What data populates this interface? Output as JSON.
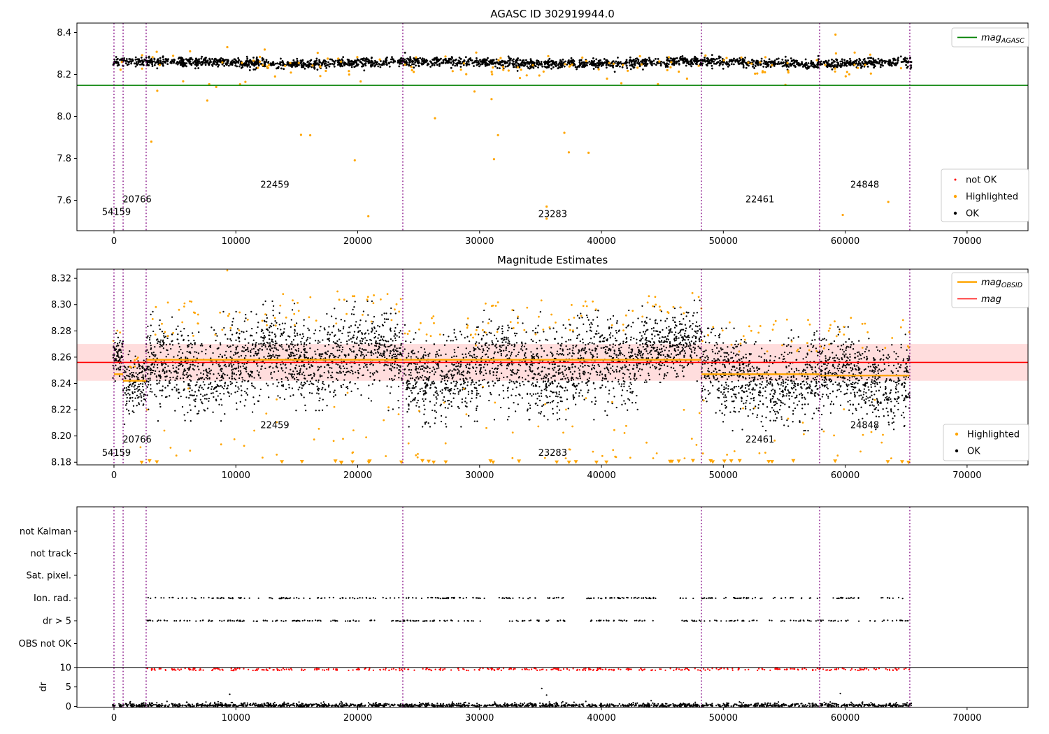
{
  "figure": {
    "background": "#ffffff"
  },
  "colors": {
    "ok": "#000000",
    "highlighted": "#ffa500",
    "not_ok": "#ff0000",
    "mag_agasc": "#008000",
    "mag_obsid": "#ffa500",
    "mag": "#ff0000",
    "mag_band": "#ffdddd",
    "divider": "#800080",
    "axis": "#000000",
    "legend_border": "#cccccc"
  },
  "chart_data": [
    {
      "id": "agasc",
      "type": "scatter",
      "title": "AGASC ID 302919944.0",
      "xlim": [
        -3040,
        75000
      ],
      "ylim": [
        7.455,
        8.445
      ],
      "xticks": [
        "0",
        "10000",
        "20000",
        "30000",
        "40000",
        "50000",
        "60000",
        "70000"
      ],
      "yticks": [
        "7.6",
        "7.8",
        "8.0",
        "8.2",
        "8.4"
      ],
      "obsid_dividers": [
        0,
        750,
        2640,
        23700,
        48200,
        57900,
        65300
      ],
      "mag_agasc_value": 8.148,
      "legend_line": {
        "main": "mag",
        "sub": "AGASC"
      },
      "legend_markers": [
        {
          "label": "not OK",
          "color_key": "not_ok"
        },
        {
          "label": "Highlighted",
          "color_key": "highlighted"
        },
        {
          "label": "OK",
          "color_key": "ok"
        }
      ],
      "obsid_labels": [
        {
          "text": "54159",
          "x": 200,
          "y": 7.53
        },
        {
          "text": "20766",
          "x": 1900,
          "y": 7.59
        },
        {
          "text": "22459",
          "x": 13200,
          "y": 7.66
        },
        {
          "text": "23283",
          "x": 36000,
          "y": 7.52
        },
        {
          "text": "22461",
          "x": 53000,
          "y": 7.59
        },
        {
          "text": "24848",
          "x": 61600,
          "y": 7.66
        }
      ],
      "ok_points": {
        "seed": 11,
        "n": 2300,
        "x_min": -150,
        "x_max": 65450,
        "mean": 8.256,
        "noise": 0.011,
        "wiggle_amp": 0.006,
        "wiggle_period": 21000,
        "y_min": 8.205,
        "y_max": 8.312
      },
      "highlighted_points": {
        "seed": 77,
        "n_near": 120,
        "near_mean": 8.245,
        "near_spread": 0.035,
        "n_low": 26,
        "low_base": 8.17,
        "low_range": 0.67,
        "x_min": 0,
        "x_max": 65300,
        "extra": [
          {
            "x": 9300,
            "y": 8.33
          },
          {
            "x": 59200,
            "y": 8.39
          },
          {
            "x": 59800,
            "y": 7.53
          },
          {
            "x": 35500,
            "y": 7.57
          }
        ]
      }
    },
    {
      "id": "magest",
      "type": "scatter",
      "title": "Magnitude Estimates",
      "xlim": [
        -3040,
        75000
      ],
      "ylim": [
        8.178,
        8.327
      ],
      "xticks": [
        "0",
        "10000",
        "20000",
        "30000",
        "40000",
        "50000",
        "60000",
        "70000"
      ],
      "yticks": [
        "8.18",
        "8.20",
        "8.22",
        "8.24",
        "8.26",
        "8.28",
        "8.30",
        "8.32"
      ],
      "obsid_dividers": [
        0,
        750,
        2640,
        23700,
        48200,
        57900,
        65300
      ],
      "mag_value": 8.256,
      "mag_band": [
        8.242,
        8.27
      ],
      "mag_obsid_segments": [
        {
          "x0": 0,
          "x1": 750,
          "y": 8.247
        },
        {
          "x0": 750,
          "x1": 2640,
          "y": 8.242
        },
        {
          "x0": 2640,
          "x1": 23700,
          "y": 8.258
        },
        {
          "x0": 23700,
          "x1": 48200,
          "y": 8.258
        },
        {
          "x0": 48200,
          "x1": 57900,
          "y": 8.247
        },
        {
          "x0": 57900,
          "x1": 65300,
          "y": 8.246
        }
      ],
      "legend_lines": [
        {
          "main": "mag",
          "sub": "OBSID",
          "color_key": "mag_obsid"
        },
        {
          "main": "mag",
          "sub": "",
          "color_key": "mag"
        }
      ],
      "legend_markers": [
        {
          "label": "Highlighted",
          "color_key": "highlighted"
        },
        {
          "label": "OK",
          "color_key": "ok"
        }
      ],
      "obsid_labels": [
        {
          "text": "54159",
          "x": 200,
          "y": 8.185
        },
        {
          "text": "20766",
          "x": 1900,
          "y": 8.195
        },
        {
          "text": "22459",
          "x": 13200,
          "y": 8.206
        },
        {
          "text": "23283",
          "x": 36000,
          "y": 8.185
        },
        {
          "text": "22461",
          "x": 53000,
          "y": 8.195
        },
        {
          "text": "24848",
          "x": 61600,
          "y": 8.206
        }
      ],
      "ok_segments": [
        {
          "x0": -100,
          "x1": 750,
          "mean": 8.26,
          "spread": 0.007,
          "n": 70
        },
        {
          "x0": 750,
          "x1": 2640,
          "mean": 8.236,
          "spread": 0.011,
          "n": 160
        },
        {
          "x0": 2640,
          "x1": 12000,
          "mean": 8.253,
          "spread": 0.016,
          "n": 720
        },
        {
          "x0": 12000,
          "x1": 23700,
          "mean": 8.261,
          "spread": 0.016,
          "n": 900
        },
        {
          "x0": 23700,
          "x1": 30000,
          "mean": 8.246,
          "spread": 0.015,
          "n": 480
        },
        {
          "x0": 30000,
          "x1": 43000,
          "mean": 8.254,
          "spread": 0.016,
          "n": 980
        },
        {
          "x0": 43000,
          "x1": 48200,
          "mean": 8.272,
          "spread": 0.012,
          "n": 410
        },
        {
          "x0": 48200,
          "x1": 57900,
          "mean": 8.243,
          "spread": 0.015,
          "n": 720
        },
        {
          "x0": 57900,
          "x1": 65300,
          "mean": 8.244,
          "spread": 0.015,
          "n": 570
        }
      ],
      "highlighted_points": {
        "seed": 55,
        "above_frac": 0.04,
        "n_below": 95,
        "below_base": 8.183,
        "below_range": 0.055,
        "x_min": 0,
        "x_max": 65300,
        "extra": [
          {
            "x": 9300,
            "y": 8.326
          }
        ]
      },
      "clipped_markers": {
        "seed": 99,
        "n": 40,
        "y": 8.1805,
        "x_min": 2200,
        "x_max": 65300
      }
    },
    {
      "id": "flags",
      "type": "scatter",
      "title": "",
      "xlim": [
        -3040,
        75000
      ],
      "xticks": [
        "0",
        "10000",
        "20000",
        "30000",
        "40000",
        "50000",
        "60000",
        "70000"
      ],
      "obsid_dividers": [
        0,
        750,
        2640,
        23700,
        48200,
        57900,
        65300
      ],
      "categories": [
        "not Kalman",
        "not track",
        "Sat. pixel.",
        "Ion. rad.",
        "dr > 5",
        "OBS not OK"
      ],
      "dr_axis": {
        "label": "dr",
        "ticks": [
          "10",
          "5",
          "0"
        ],
        "hline": 10
      },
      "ion_rad_points": {
        "seed": 21,
        "n": 310,
        "x_min": 2640,
        "x_max": 65300,
        "gaps": [
          [
            30400,
            31600
          ],
          [
            37000,
            38800
          ],
          [
            44600,
            46400
          ]
        ]
      },
      "dr5_points": {
        "seed": 22,
        "n": 310,
        "x_min": 2640,
        "x_max": 65300,
        "gaps": [
          [
            30400,
            31600
          ],
          [
            37000,
            38800
          ],
          [
            44600,
            46400
          ]
        ]
      },
      "dr10_points": {
        "seed": 23,
        "n": 400,
        "x_min": 2640,
        "x_max": 65300,
        "gaps": []
      },
      "dr_points": {
        "seed": 24,
        "n": 1700,
        "x_min": -100,
        "x_max": 65450
      },
      "dr_spikes": [
        {
          "x": 9500,
          "dr": 3.1
        },
        {
          "x": 35100,
          "dr": 4.6
        },
        {
          "x": 35500,
          "dr": 2.9
        },
        {
          "x": 59600,
          "dr": 3.3
        }
      ]
    }
  ]
}
